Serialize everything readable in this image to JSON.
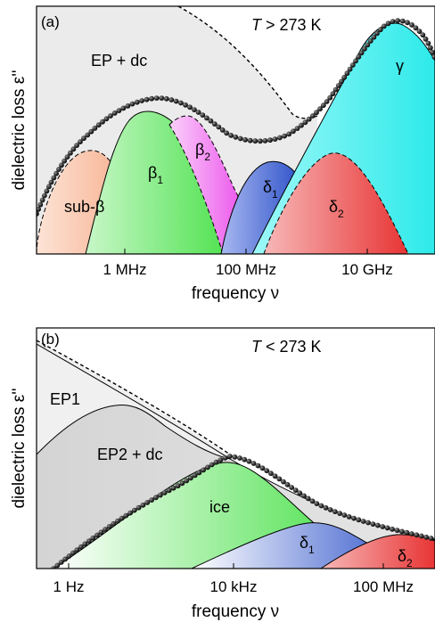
{
  "chart_data": [
    {
      "type": "area",
      "panel_label": "(a)",
      "condition": {
        "prefix": "T",
        "rest": " > 273 K"
      },
      "xlabel": {
        "text": "frequency ",
        "symbol": "ν"
      },
      "ylabel": {
        "text": "dielectric loss ",
        "symbol": "ε''"
      },
      "x_tick_labels": [
        "1 MHz",
        "100 MHz",
        "10 GHz"
      ],
      "x_scale": "log",
      "x_ticks_hz": [
        1000000.0,
        100000000.0,
        10000000000.0
      ],
      "xlim_hz": [
        10000.0,
        300000000000.0
      ],
      "y_scale": "log",
      "grid": false,
      "annotations": {
        "background": "EP + dc",
        "sub_beta": "sub-β",
        "beta1": {
          "base": "β",
          "sub": "1"
        },
        "beta2": {
          "base": "β",
          "sub": "2"
        },
        "delta1": {
          "base": "δ",
          "sub": "1"
        },
        "delta2": {
          "base": "δ",
          "sub": "2"
        },
        "gamma": "γ"
      },
      "colors": {
        "background": "#ebebeb",
        "sub_beta": "#f4a57e",
        "beta1": "#5ce85c",
        "beta2": "#f17cf1",
        "delta1": "#3a5fd0",
        "delta2": "#ec4a4a",
        "gamma": "#3ff2f2"
      }
    },
    {
      "type": "area",
      "panel_label": "(b)",
      "condition": {
        "prefix": "T",
        "rest": " < 273 K"
      },
      "xlabel": {
        "text": "frequency ",
        "symbol": "ν"
      },
      "ylabel": {
        "text": "dielectric loss ",
        "symbol": "ε''"
      },
      "x_tick_labels": [
        "1 Hz",
        "10 kHz",
        "100 MHz"
      ],
      "x_scale": "log",
      "x_ticks_hz": [
        1,
        10000.0,
        100000000.0
      ],
      "xlim_hz": [
        0.3,
        10000000000.0
      ],
      "y_scale": "log",
      "grid": false,
      "annotations": {
        "ep1": "EP1",
        "ep2": "EP2 + dc",
        "ice": "ice",
        "delta1": {
          "base": "δ",
          "sub": "1"
        },
        "delta2": {
          "base": "δ",
          "sub": "2"
        }
      },
      "colors": {
        "ep1": "#f0f0f0",
        "ep2": "#d8d8d8",
        "ice": "#5ce85c",
        "delta1": "#3a5fd0",
        "delta2": "#ec4a4a"
      }
    }
  ]
}
